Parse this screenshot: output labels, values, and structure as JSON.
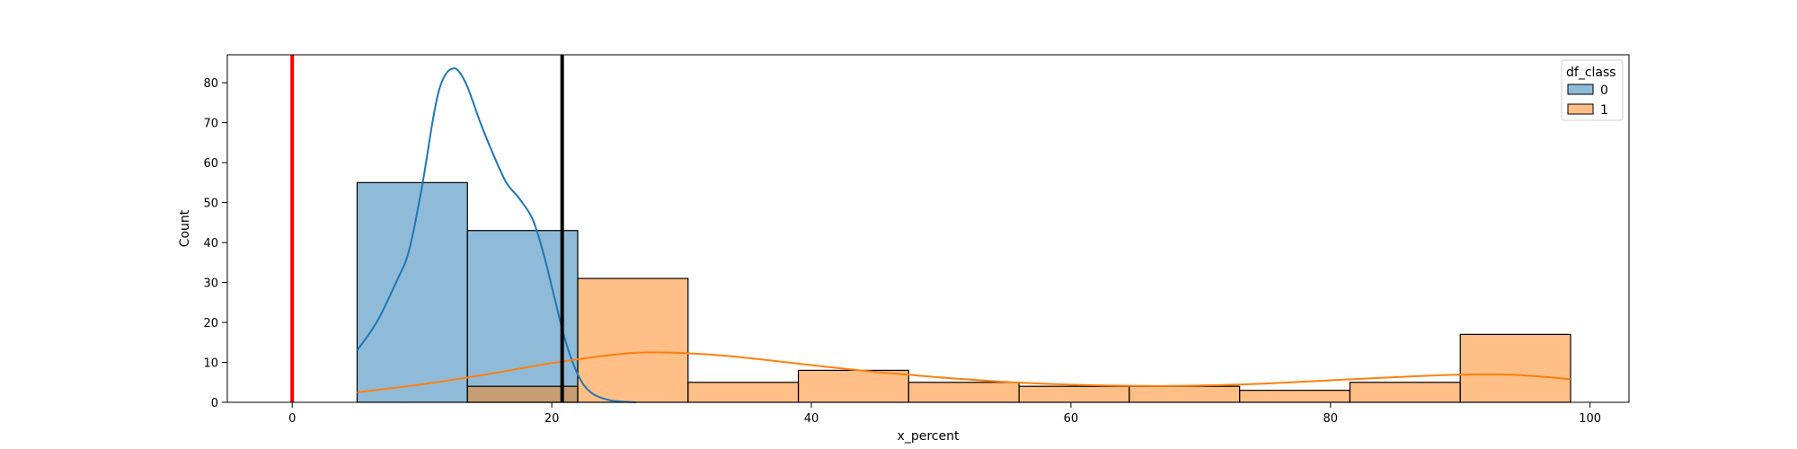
{
  "chart_data": {
    "type": "bar",
    "title": "",
    "xlabel": "x_percent",
    "ylabel": "Count",
    "xlim": [
      -5,
      103
    ],
    "ylim": [
      0,
      87
    ],
    "x_ticks": [
      0,
      20,
      40,
      60,
      80,
      100
    ],
    "y_ticks": [
      0,
      10,
      20,
      30,
      40,
      50,
      60,
      70,
      80
    ],
    "grid": false,
    "legend": {
      "title": "df_class",
      "placement": "top-right",
      "entries": [
        "0",
        "1"
      ]
    },
    "series": [
      {
        "name": "0",
        "color": "#1f77b4",
        "bins": [
          {
            "x0": 5.0,
            "x1": 13.5,
            "count": 55
          },
          {
            "x0": 13.5,
            "x1": 22.0,
            "count": 43
          }
        ],
        "kde": [
          {
            "x": 5.0,
            "y": 13
          },
          {
            "x": 6.5,
            "y": 20
          },
          {
            "x": 8.0,
            "y": 30
          },
          {
            "x": 9.0,
            "y": 38
          },
          {
            "x": 10.0,
            "y": 54
          },
          {
            "x": 10.8,
            "y": 70
          },
          {
            "x": 11.3,
            "y": 78
          },
          {
            "x": 11.8,
            "y": 82
          },
          {
            "x": 12.3,
            "y": 83.5
          },
          {
            "x": 12.8,
            "y": 83
          },
          {
            "x": 13.5,
            "y": 79
          },
          {
            "x": 14.5,
            "y": 70
          },
          {
            "x": 15.5,
            "y": 62
          },
          {
            "x": 16.5,
            "y": 55
          },
          {
            "x": 17.5,
            "y": 51
          },
          {
            "x": 18.5,
            "y": 46
          },
          {
            "x": 19.3,
            "y": 38
          },
          {
            "x": 20.0,
            "y": 29
          },
          {
            "x": 21.0,
            "y": 16
          },
          {
            "x": 22.0,
            "y": 7
          },
          {
            "x": 23.0,
            "y": 2.5
          },
          {
            "x": 24.5,
            "y": 0.5
          },
          {
            "x": 26.5,
            "y": 0
          }
        ]
      },
      {
        "name": "1",
        "color": "#ff7f0e",
        "bins": [
          {
            "x0": 13.5,
            "x1": 22.0,
            "count": 4
          },
          {
            "x0": 22.0,
            "x1": 30.5,
            "count": 31
          },
          {
            "x0": 30.5,
            "x1": 39.0,
            "count": 5
          },
          {
            "x0": 39.0,
            "x1": 47.5,
            "count": 8
          },
          {
            "x0": 47.5,
            "x1": 56.0,
            "count": 5
          },
          {
            "x0": 56.0,
            "x1": 64.5,
            "count": 4
          },
          {
            "x0": 64.5,
            "x1": 73.0,
            "count": 4
          },
          {
            "x0": 73.0,
            "x1": 81.5,
            "count": 3
          },
          {
            "x0": 81.5,
            "x1": 90.0,
            "count": 5
          },
          {
            "x0": 90.0,
            "x1": 98.5,
            "count": 17
          }
        ],
        "kde": [
          {
            "x": 5.0,
            "y": 2.5
          },
          {
            "x": 10.0,
            "y": 4.5
          },
          {
            "x": 15.0,
            "y": 7.0
          },
          {
            "x": 20.0,
            "y": 9.8
          },
          {
            "x": 25.0,
            "y": 12.0
          },
          {
            "x": 28.0,
            "y": 12.5
          },
          {
            "x": 32.0,
            "y": 12.0
          },
          {
            "x": 36.0,
            "y": 10.8
          },
          {
            "x": 40.0,
            "y": 9.3
          },
          {
            "x": 45.0,
            "y": 7.6
          },
          {
            "x": 50.0,
            "y": 6.2
          },
          {
            "x": 55.0,
            "y": 5.1
          },
          {
            "x": 60.0,
            "y": 4.4
          },
          {
            "x": 65.0,
            "y": 4.1
          },
          {
            "x": 70.0,
            "y": 4.2
          },
          {
            "x": 75.0,
            "y": 4.7
          },
          {
            "x": 80.0,
            "y": 5.5
          },
          {
            "x": 85.0,
            "y": 6.3
          },
          {
            "x": 90.0,
            "y": 6.9
          },
          {
            "x": 94.0,
            "y": 6.9
          },
          {
            "x": 98.5,
            "y": 5.8
          }
        ]
      }
    ],
    "vertical_lines": [
      {
        "x": 0,
        "color": "#ff0000"
      },
      {
        "x": 20.8,
        "color": "#000000"
      }
    ]
  }
}
